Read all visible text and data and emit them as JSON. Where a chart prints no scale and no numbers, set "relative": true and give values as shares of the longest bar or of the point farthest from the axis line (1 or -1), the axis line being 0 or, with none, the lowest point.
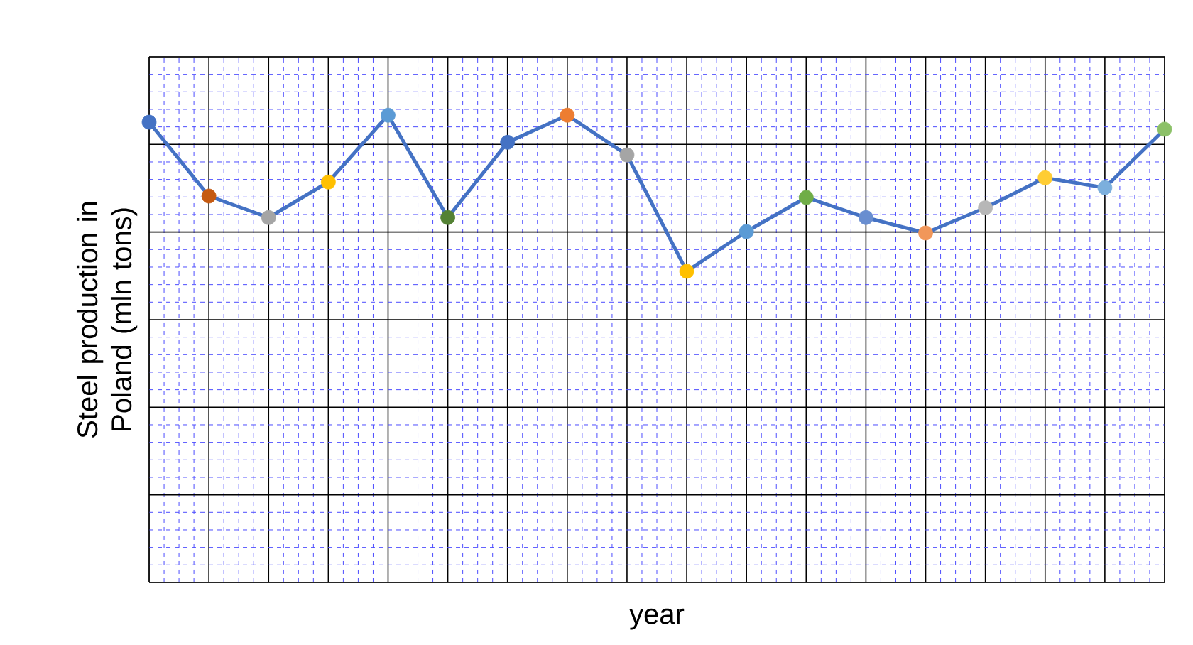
{
  "chart_data": {
    "type": "line",
    "relative": true,
    "xlabel": "year",
    "ylabel": "Steel production in Poland (mln tons)",
    "grid": true,
    "marker": "circle",
    "color": "#4472c4",
    "categories": [
      null,
      null,
      null,
      null,
      null,
      null,
      null,
      null,
      null,
      null,
      null,
      null,
      null,
      null,
      null,
      null,
      null,
      null
    ],
    "values": [
      0.985,
      0.827,
      0.781,
      0.857,
      1,
      0.781,
      0.942,
      1,
      0.915,
      0.666,
      0.751,
      0.824,
      0.781,
      0.748,
      0.802,
      0.866,
      0.845,
      0.97
    ],
    "colors": [
      "#4472c4",
      "#c55a11",
      "#a5a5a5",
      "#ffc000",
      "#5b9bd5",
      "#548235",
      "#4472c4",
      "#ed7d31",
      "#a5a5a5",
      "#ffc000",
      "#5b9bd5",
      "#70ad47",
      "#698ed0",
      "#f1975a",
      "#b7b7b7",
      "#ffcd33",
      "#7cafdd",
      "#8cc168"
    ]
  }
}
